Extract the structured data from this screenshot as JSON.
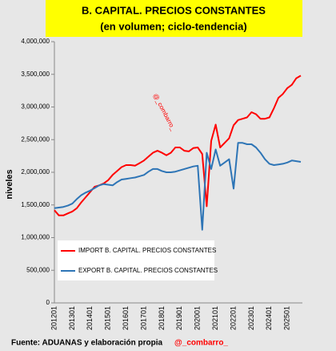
{
  "chart_data": {
    "type": "line",
    "title": "B. CAPITAL. PRECIOS CONSTANTES",
    "subtitle": "(en volumen; ciclo-tendencia)",
    "y_label": "niveles",
    "annotation": "@_combarro_",
    "source": "Fuente: ADUANAS y elaboración propia",
    "source_handle": "@_combarro_",
    "legend": "bottom-left",
    "grid": false,
    "categories": [
      "201201",
      null,
      null,
      null,
      "201301",
      null,
      null,
      null,
      "201401",
      null,
      null,
      null,
      "201501",
      null,
      null,
      null,
      "201601",
      null,
      null,
      null,
      "201701",
      null,
      null,
      null,
      "201801",
      null,
      null,
      null,
      "201901",
      null,
      null,
      null,
      "202001",
      null,
      null,
      null,
      "202101",
      null,
      null,
      null,
      "202201",
      null,
      null,
      null,
      "202301",
      null,
      null,
      null,
      "202401",
      null,
      null,
      null,
      "202501",
      null,
      null,
      null
    ],
    "series": [
      {
        "name": "IMPORT B. CAPITAL. PRECIOS CONSTANTES",
        "color": "#ff0000",
        "values": [
          1420000,
          1340000,
          1340000,
          1370000,
          1400000,
          1450000,
          1540000,
          1620000,
          1700000,
          1780000,
          1800000,
          1830000,
          1880000,
          1960000,
          2020000,
          2080000,
          2110000,
          2110000,
          2100000,
          2140000,
          2180000,
          2240000,
          2300000,
          2330000,
          2300000,
          2260000,
          2300000,
          2380000,
          2380000,
          2330000,
          2320000,
          2370000,
          2380000,
          2280000,
          1480000,
          2480000,
          2730000,
          2380000,
          2450000,
          2520000,
          2720000,
          2800000,
          2820000,
          2840000,
          2920000,
          2890000,
          2820000,
          2820000,
          2840000,
          2980000,
          3140000,
          3200000,
          3290000,
          3340000,
          3440000,
          3480000
        ]
      },
      {
        "name": "EXPORT B. CAPITAL. PRECIOS CONSTANTES",
        "color": "#2e75b6",
        "values": [
          1450000,
          1460000,
          1470000,
          1490000,
          1520000,
          1590000,
          1650000,
          1690000,
          1720000,
          1760000,
          1800000,
          1820000,
          1810000,
          1800000,
          1850000,
          1890000,
          1900000,
          1910000,
          1920000,
          1940000,
          1960000,
          2010000,
          2050000,
          2050000,
          2020000,
          2000000,
          2000000,
          2010000,
          2030000,
          2050000,
          2070000,
          2090000,
          2100000,
          1120000,
          2300000,
          2050000,
          2350000,
          2100000,
          2150000,
          2200000,
          1750000,
          2450000,
          2450000,
          2430000,
          2430000,
          2380000,
          2300000,
          2200000,
          2130000,
          2110000,
          2120000,
          2130000,
          2150000,
          2180000,
          2170000,
          2160000
        ]
      }
    ],
    "ylim": [
      0,
      4000000
    ],
    "yticks": [
      0,
      {
        "value": 500000,
        "label": "500,000"
      },
      {
        "value": 1000000,
        "label": "1,000,000"
      },
      {
        "value": 1500000,
        "label": "1,500,000"
      },
      {
        "value": 2000000,
        "label": "2,000,000"
      },
      {
        "value": 2500000,
        "label": "2,500,000"
      },
      {
        "value": 3000000,
        "label": "3,000,000"
      },
      {
        "value": 3500000,
        "label": "3,500,000"
      },
      {
        "value": 4000000,
        "label": "4,000,000"
      }
    ]
  }
}
